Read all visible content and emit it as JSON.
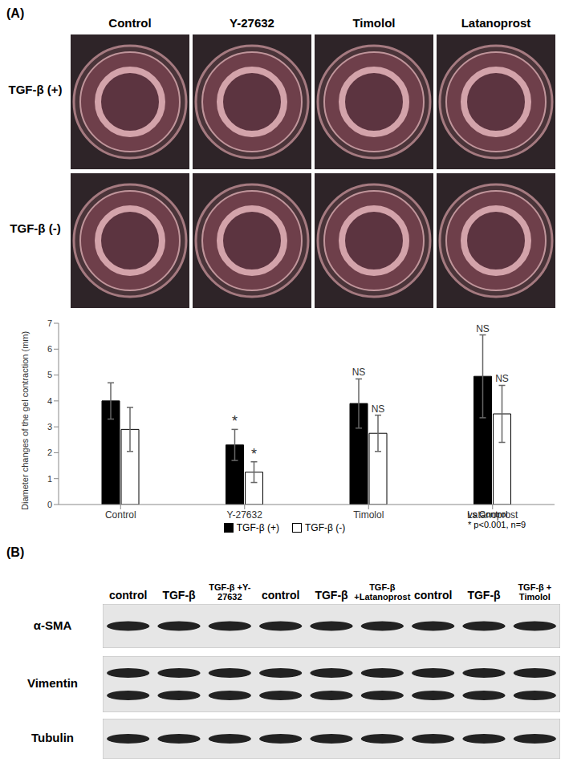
{
  "panel_a": {
    "label": "(A)",
    "columns": [
      "Control",
      "Y-27632",
      "Timolol",
      "Latanoprost"
    ],
    "rows": [
      "TGF-β (+)",
      "TGF-β (-)"
    ]
  },
  "chart_data": {
    "type": "bar",
    "y_label": "Diameter changes of the gel contraction (mm)",
    "categories": [
      "Control",
      "Y-27632",
      "Timolol",
      "Latanoprost"
    ],
    "series": [
      {
        "name": "TGF-β (+)",
        "color": "#000000",
        "values": [
          4.0,
          2.3,
          3.9,
          4.95
        ],
        "errors": [
          0.7,
          0.6,
          0.95,
          1.6
        ],
        "annotations": [
          null,
          "*",
          "NS",
          "NS"
        ]
      },
      {
        "name": "TGF-β (-)",
        "color": "#ffffff",
        "values": [
          2.9,
          1.25,
          2.75,
          3.5
        ],
        "errors": [
          0.85,
          0.4,
          0.7,
          1.1
        ],
        "annotations": [
          null,
          "*",
          "NS",
          "NS"
        ]
      }
    ],
    "ylim": [
      0,
      7
    ],
    "yticks": [
      0,
      1,
      2,
      3,
      4,
      5,
      6,
      7
    ],
    "legend": "bottom",
    "note": [
      "vs Control",
      "* p<0.001, n=9"
    ]
  },
  "panel_b": {
    "label": "(B)",
    "lanes": [
      "control",
      "TGF-β",
      "TGF-β +Y-27632",
      "control",
      "TGF-β",
      "TGF-β +Latanoprost",
      "control",
      "TGF-β",
      "TGF-β + Timolol"
    ],
    "rows": [
      "α-SMA",
      "Vimentin",
      "Tubulin"
    ]
  }
}
